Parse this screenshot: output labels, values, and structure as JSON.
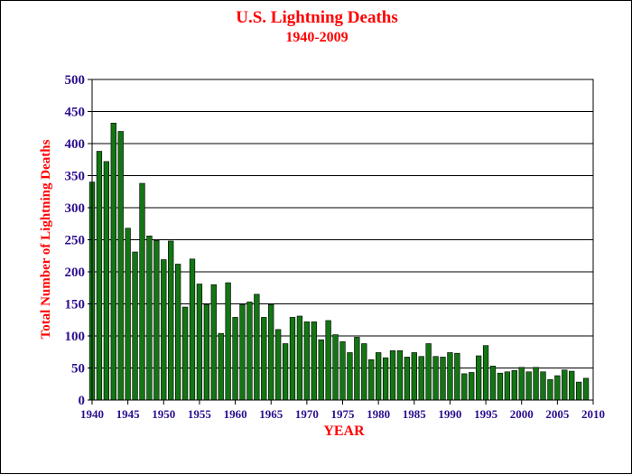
{
  "chart_data": {
    "type": "bar",
    "title": "U.S. Lightning Deaths",
    "subtitle": "1940-2009",
    "xlabel": "YEAR",
    "ylabel": "Total Number of Lightning Deaths",
    "ylim": [
      0,
      500
    ],
    "yticks": [
      "0",
      "50",
      "100",
      "150",
      "200",
      "250",
      "300",
      "350",
      "400",
      "450",
      "500"
    ],
    "xticks": [
      "1940",
      "1945",
      "1950",
      "1955",
      "1960",
      "1965",
      "1970",
      "1975",
      "1980",
      "1985",
      "1990",
      "1995",
      "2000",
      "2005",
      "2010"
    ],
    "grid": true,
    "legend": "none",
    "categories": [
      1940,
      1941,
      1942,
      1943,
      1944,
      1945,
      1946,
      1947,
      1948,
      1949,
      1950,
      1951,
      1952,
      1953,
      1954,
      1955,
      1956,
      1957,
      1958,
      1959,
      1960,
      1961,
      1962,
      1963,
      1964,
      1965,
      1966,
      1967,
      1968,
      1969,
      1970,
      1971,
      1972,
      1973,
      1974,
      1975,
      1976,
      1977,
      1978,
      1979,
      1980,
      1981,
      1982,
      1983,
      1984,
      1985,
      1986,
      1987,
      1988,
      1989,
      1990,
      1991,
      1992,
      1993,
      1994,
      1995,
      1996,
      1997,
      1998,
      1999,
      2000,
      2001,
      2002,
      2003,
      2004,
      2005,
      2006,
      2007,
      2008,
      2009
    ],
    "values": [
      340,
      388,
      372,
      432,
      419,
      268,
      231,
      338,
      256,
      249,
      219,
      248,
      212,
      145,
      220,
      181,
      149,
      180,
      104,
      183,
      129,
      149,
      153,
      165,
      129,
      149,
      110,
      88,
      129,
      131,
      122,
      122,
      94,
      124,
      102,
      91,
      74,
      98,
      88,
      63,
      74,
      66,
      77,
      77,
      67,
      74,
      68,
      88,
      68,
      67,
      74,
      73,
      41,
      43,
      69,
      85,
      53,
      42,
      44,
      46,
      51,
      44,
      51,
      44,
      32,
      38,
      47,
      45,
      28,
      34
    ],
    "colors": {
      "bar": "#137513",
      "bar_edge": "#000000",
      "title": "#ff0000",
      "ticks": "#2c0f8f",
      "grid": "#000000"
    }
  }
}
